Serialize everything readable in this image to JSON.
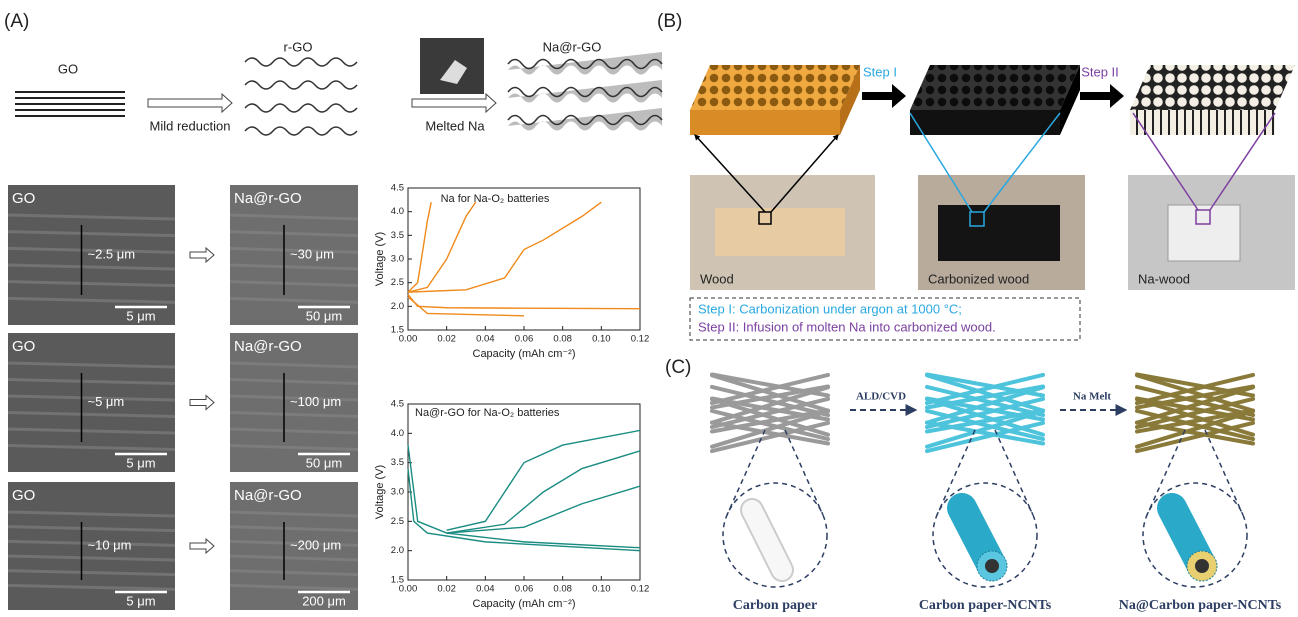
{
  "panel_a": {
    "label": "(A)",
    "schematic": {
      "go": "GO",
      "rgo": "r-GO",
      "na_rgo": "Na@r-GO",
      "step1": "Mild reduction",
      "step2": "Melted Na"
    },
    "sem": [
      {
        "left": "GO",
        "left_thickness": "~2.5 μm",
        "left_scale": "5 μm",
        "right": "Na@r-GO",
        "right_thickness": "~30 μm",
        "right_scale": "50 μm"
      },
      {
        "left": "GO",
        "left_thickness": "~5 μm",
        "left_scale": "5 μm",
        "right": "Na@r-GO",
        "right_thickness": "~100 μm",
        "right_scale": "50 μm"
      },
      {
        "left": "GO",
        "left_thickness": "~10 μm",
        "left_scale": "5 μm",
        "right": "Na@r-GO",
        "right_thickness": "~200 μm",
        "right_scale": "200 μm"
      }
    ]
  },
  "panel_b": {
    "label": "(B)",
    "step1": "Step I",
    "step2": "Step II",
    "photos": [
      "Wood",
      "Carbonized wood",
      "Na-wood"
    ],
    "notes": [
      "Step I: Carbonization under argon at 1000 °C;",
      "Step II: Infusion of molten Na into carbonized wood."
    ]
  },
  "panel_c": {
    "label": "(C)",
    "step1": "ALD/CVD",
    "step2": "Na Melt",
    "captions": [
      "Carbon paper",
      "Carbon paper-NCNTs",
      "Na@Carbon paper-NCNTs"
    ]
  },
  "chart_data": [
    {
      "type": "line",
      "title": "Na for Na-O₂ batteries",
      "xlabel": "Capacity (mAh cm⁻²)",
      "ylabel": "Voltage (V)",
      "xlim": [
        0,
        0.12
      ],
      "xticks": [
        {
          "value": 0,
          "label": "0.00"
        },
        0.02,
        0.04,
        0.06,
        0.08,
        {
          "value": 0.1,
          "label": "0.10"
        },
        0.12
      ],
      "ylim": [
        1.5,
        4.5
      ],
      "yticks": [
        1.5,
        {
          "value": 2,
          "label": "2.0"
        },
        2.5,
        {
          "value": 3,
          "label": "3.0"
        },
        3.5,
        {
          "value": 4,
          "label": "4.0"
        },
        4.5
      ],
      "series": [
        {
          "color": "#f08a1c",
          "x": [
            0,
            0.005,
            0.02,
            0.06,
            0.12
          ],
          "values": [
            2.25,
            2.0,
            1.97,
            1.96,
            1.95
          ]
        },
        {
          "color": "#f08a1c",
          "x": [
            0,
            0.01,
            0.06
          ],
          "values": [
            2.2,
            1.85,
            1.8
          ]
        },
        {
          "color": "#f08a1c",
          "x": [
            0,
            0.005,
            0.01,
            0.012
          ],
          "values": [
            2.3,
            2.5,
            3.8,
            4.2
          ]
        },
        {
          "color": "#f08a1c",
          "x": [
            0,
            0.01,
            0.02,
            0.03,
            0.035
          ],
          "values": [
            2.3,
            2.4,
            3.0,
            3.9,
            4.2
          ]
        },
        {
          "color": "#f08a1c",
          "x": [
            0,
            0.03,
            0.05,
            0.06,
            0.07,
            0.09,
            0.1
          ],
          "values": [
            2.3,
            2.35,
            2.6,
            3.2,
            3.4,
            3.9,
            4.2
          ]
        }
      ]
    },
    {
      "type": "line",
      "title": "Na@r-GO for Na-O₂ batteries",
      "xlabel": "Capacity (mAh cm⁻²)",
      "ylabel": "Voltage (V)",
      "xlim": [
        0,
        0.12
      ],
      "xticks": [
        {
          "value": 0,
          "label": "0.00"
        },
        0.02,
        0.04,
        0.06,
        0.08,
        {
          "value": 0.1,
          "label": "0.10"
        },
        0.12
      ],
      "ylim": [
        1.5,
        4.5
      ],
      "yticks": [
        1.5,
        {
          "value": 2,
          "label": "2.0"
        },
        2.5,
        {
          "value": 3,
          "label": "3.0"
        },
        3.5,
        {
          "value": 4,
          "label": "4.0"
        },
        4.5
      ],
      "series": [
        {
          "color": "#1a8c82",
          "x": [
            0,
            0.005,
            0.02,
            0.06,
            0.12
          ],
          "values": [
            3.8,
            2.5,
            2.3,
            2.15,
            2.05
          ]
        },
        {
          "color": "#1a8c82",
          "x": [
            0,
            0.003,
            0.01,
            0.04,
            0.12
          ],
          "values": [
            3.4,
            2.5,
            2.3,
            2.15,
            2.0
          ]
        },
        {
          "color": "#1a8c82",
          "x": [
            0.02,
            0.04,
            0.05,
            0.06,
            0.08,
            0.12
          ],
          "values": [
            2.35,
            2.5,
            3.0,
            3.5,
            3.8,
            4.05
          ]
        },
        {
          "color": "#1a8c82",
          "x": [
            0.02,
            0.05,
            0.07,
            0.09,
            0.12
          ],
          "values": [
            2.3,
            2.45,
            3.0,
            3.4,
            3.7
          ]
        },
        {
          "color": "#1a8c82",
          "x": [
            0.02,
            0.06,
            0.09,
            0.12
          ],
          "values": [
            2.3,
            2.4,
            2.8,
            3.1
          ]
        }
      ]
    }
  ]
}
